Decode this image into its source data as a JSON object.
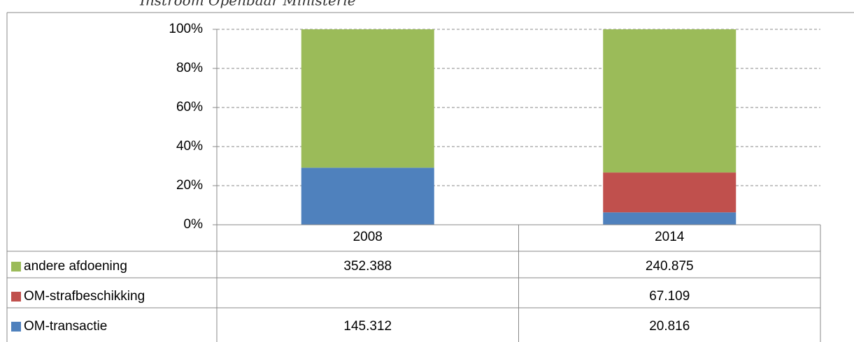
{
  "chart_data": {
    "type": "bar",
    "stacking": "percent",
    "title": "Instroom Openbaar Ministerie",
    "categories": [
      "2008",
      "2014"
    ],
    "series": [
      {
        "name": "OM-transactie",
        "color": "#4f81bd",
        "values": [
          145312,
          20816
        ],
        "value_labels": [
          "145.312",
          "20.816"
        ]
      },
      {
        "name": "OM-strafbeschikking",
        "color": "#c0504d",
        "values": [
          null,
          67109
        ],
        "value_labels": [
          null,
          "67.109"
        ]
      },
      {
        "name": "andere afdoening",
        "color": "#9bbb59",
        "values": [
          352388,
          240875
        ],
        "value_labels": [
          "352.388",
          "240.875"
        ]
      }
    ],
    "ylim": [
      0,
      100
    ],
    "yticks": [
      {
        "value": 0,
        "label": "0%"
      },
      {
        "value": 20,
        "label": "20%"
      },
      {
        "value": 40,
        "label": "40%"
      },
      {
        "value": 60,
        "label": "60%"
      },
      {
        "value": 80,
        "label": "80%"
      },
      {
        "value": 100,
        "label": "100%"
      }
    ],
    "grid": true
  }
}
